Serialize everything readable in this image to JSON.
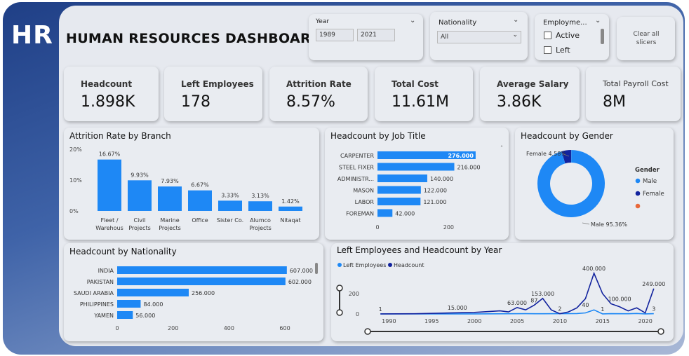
{
  "logo": "HR",
  "title": "HUMAN RESOURCES DASHBOARD",
  "slicers": {
    "year": {
      "label": "Year",
      "from": "1989",
      "to": "2021"
    },
    "nationality": {
      "label": "Nationality",
      "value": "All"
    },
    "employment": {
      "label": "Employme...",
      "options": [
        "Active",
        "Left"
      ]
    },
    "clear": {
      "label": "Clear all slicers"
    }
  },
  "kpis": [
    {
      "label": "Headcount",
      "value": "1.898K"
    },
    {
      "label": "Left Employees",
      "value": "178"
    },
    {
      "label": "Attrition Rate",
      "value": "8.57%"
    },
    {
      "label": "Total Cost",
      "value": "11.61M"
    },
    {
      "label": "Average Salary",
      "value": "3.86K"
    },
    {
      "label": "Total Payroll Cost",
      "value": "8M"
    }
  ],
  "colors": {
    "accent": "#1e88f5",
    "dark": "#12239e",
    "orange": "#e8683a"
  },
  "chart_data": [
    {
      "type": "bar",
      "title": "Attrition Rate by Branch",
      "categories": [
        [
          "Fleet /",
          "Warehous"
        ],
        [
          "Civil",
          "Projects"
        ],
        [
          "Marine",
          "Projects"
        ],
        [
          "Office"
        ],
        [
          "Sister Co."
        ],
        [
          "Alumco",
          "Projects"
        ],
        [
          "Nitaqat"
        ]
      ],
      "values": [
        16.67,
        9.93,
        7.93,
        6.67,
        3.33,
        3.13,
        1.42
      ],
      "value_labels": [
        "16.67%",
        "9.93%",
        "7.93%",
        "6.67%",
        "3.33%",
        "3.13%",
        "1.42%"
      ],
      "yticks": [
        "0%",
        "10%",
        "20%"
      ],
      "ylim": [
        0,
        20
      ]
    },
    {
      "type": "bar",
      "orientation": "horizontal",
      "title": "Headcount by Job Title",
      "categories": [
        "CARPENTER",
        "STEEL FIXER",
        "ADMINISTR...",
        "MASON",
        "LABOR",
        "FOREMAN"
      ],
      "values": [
        276,
        216,
        140,
        122,
        121,
        42
      ],
      "value_labels": [
        "276.000",
        "216.000",
        "140.000",
        "122.000",
        "121.000",
        "42.000"
      ],
      "xticks": [
        "0",
        "200"
      ],
      "xlim": [
        0,
        290
      ]
    },
    {
      "type": "pie",
      "title": "Headcount by Gender",
      "legend_title": "Gender",
      "slices": [
        {
          "name": "Male",
          "value": 95.36,
          "label": "Male 95.36%"
        },
        {
          "name": "Female",
          "value": 4.58,
          "label": "Female 4.58%"
        },
        {
          "name": "",
          "value": 0.06,
          "label": ""
        }
      ]
    },
    {
      "type": "bar",
      "orientation": "horizontal",
      "title": "Headcount by Nationality",
      "categories": [
        "INDIA",
        "PAKISTAN",
        "SAUDI ARABIA",
        "PHILIPPINES",
        "YAMEN"
      ],
      "values": [
        607,
        602,
        256,
        84,
        56
      ],
      "value_labels": [
        "607.000",
        "602.000",
        "256.000",
        "84.000",
        "56.000"
      ],
      "xticks": [
        "0",
        "200",
        "400",
        "600"
      ],
      "xlim": [
        0,
        630
      ]
    },
    {
      "type": "line",
      "title": "Left Employees and Headcount by Year",
      "series": [
        {
          "name": "Left Employees",
          "x": [
            1989,
            2000,
            2004,
            2006,
            2008,
            2010,
            2012,
            2013,
            2014,
            2015,
            2016,
            2018,
            2019,
            2020,
            2021
          ],
          "values": [
            1,
            1,
            2,
            3,
            2,
            3,
            4,
            10,
            40,
            1,
            3,
            2,
            5,
            1,
            3
          ]
        },
        {
          "name": "Headcount",
          "x": [
            1989,
            1993,
            2000,
            2003,
            2004,
            2005,
            2006,
            2007,
            2008,
            2009,
            2010,
            2011,
            2012,
            2013,
            2014,
            2015,
            2016,
            2017,
            2018,
            2019,
            2020,
            2021
          ],
          "values": [
            1,
            2,
            15,
            30,
            20,
            63,
            40,
            87,
            153,
            40,
            2,
            20,
            60,
            150,
            400,
            200,
            100,
            70,
            30,
            60,
            10,
            249
          ]
        }
      ],
      "annotations": [
        {
          "x": 1989,
          "y": 1,
          "text": "1"
        },
        {
          "x": 1998,
          "y": 15,
          "text": "15.000"
        },
        {
          "x": 2005,
          "y": 63,
          "text": "63.000"
        },
        {
          "x": 2007,
          "y": 87,
          "text": "87"
        },
        {
          "x": 2008,
          "y": 153,
          "text": "153.000"
        },
        {
          "x": 2010,
          "y": 2,
          "text": "2"
        },
        {
          "x": 2014,
          "y": 400,
          "text": "400.000"
        },
        {
          "x": 2013,
          "y": 40,
          "text": "40"
        },
        {
          "x": 2017,
          "y": 100,
          "text": "100.000"
        },
        {
          "x": 2015,
          "y": 1,
          "text": "1"
        },
        {
          "x": 2021,
          "y": 249,
          "text": "249.000"
        },
        {
          "x": 2021,
          "y": 3,
          "text": "3"
        }
      ],
      "xticks": [
        "1990",
        "1995",
        "2000",
        "2005",
        "2010",
        "2015",
        "2020"
      ],
      "yticks": [
        "0",
        "200"
      ],
      "xlim": [
        1988,
        2022
      ],
      "ylim": [
        0,
        420
      ]
    }
  ]
}
